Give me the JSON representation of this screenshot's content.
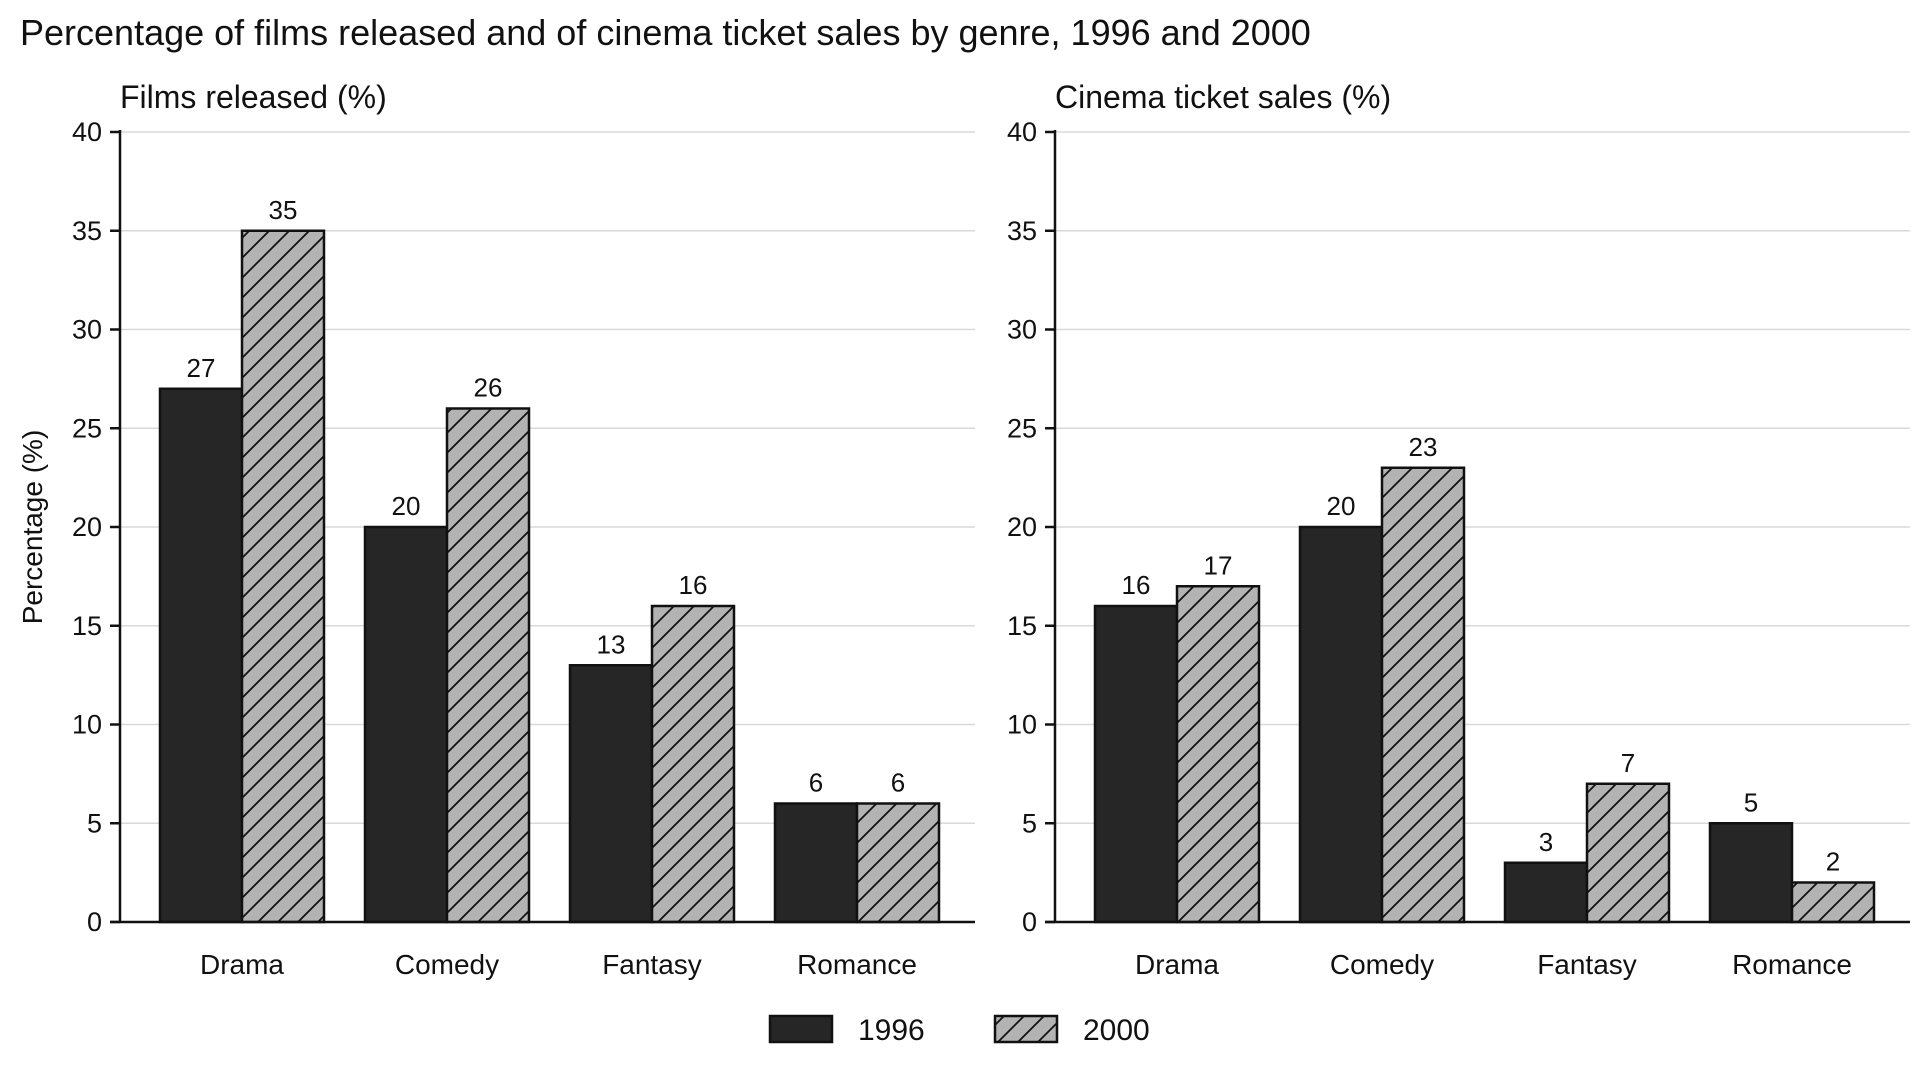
{
  "chart_data": {
    "type": "bar",
    "title": "Percentage of films released and of cinema ticket sales by genre, 1996 and 2000",
    "ylabel": "Percentage (%)",
    "ylim": [
      0,
      40
    ],
    "yticks": [
      0,
      5,
      10,
      15,
      20,
      25,
      30,
      35,
      40
    ],
    "grid": true,
    "legend_position": "bottom-center",
    "legend": [
      {
        "name": "1996",
        "fill": "#262626",
        "pattern": "solid"
      },
      {
        "name": "2000",
        "fill": "#b3b3b3",
        "pattern": "diagonal-hatch"
      }
    ],
    "categories": [
      "Drama",
      "Comedy",
      "Fantasy",
      "Romance"
    ],
    "panels": [
      {
        "title": "Films released (%)",
        "series": [
          {
            "name": "1996",
            "values": [
              27,
              20,
              13,
              6
            ]
          },
          {
            "name": "2000",
            "values": [
              35,
              26,
              16,
              6
            ]
          }
        ]
      },
      {
        "title": "Cinema ticket sales (%)",
        "series": [
          {
            "name": "1996",
            "values": [
              16,
              20,
              3,
              5
            ]
          },
          {
            "name": "2000",
            "values": [
              17,
              23,
              7,
              2
            ]
          }
        ]
      }
    ]
  }
}
